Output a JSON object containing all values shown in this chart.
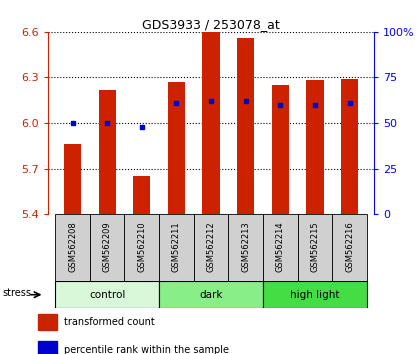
{
  "title": "GDS3933 / 253078_at",
  "samples": [
    "GSM562208",
    "GSM562209",
    "GSM562210",
    "GSM562211",
    "GSM562212",
    "GSM562213",
    "GSM562214",
    "GSM562215",
    "GSM562216"
  ],
  "transformed_counts": [
    5.86,
    6.22,
    5.65,
    6.27,
    6.6,
    6.56,
    6.25,
    6.28,
    6.29
  ],
  "percentile_ranks": [
    50,
    50,
    48,
    61,
    62,
    62,
    60,
    60,
    61
  ],
  "ylim_left": [
    5.4,
    6.6
  ],
  "ylim_right": [
    0,
    100
  ],
  "yticks_left": [
    5.4,
    5.7,
    6.0,
    6.3,
    6.6
  ],
  "yticks_right": [
    0,
    25,
    50,
    75,
    100
  ],
  "bar_color": "#cc2200",
  "dot_color": "#0000cc",
  "bar_bottom": 5.4,
  "groups": [
    {
      "label": "control",
      "start": 0,
      "end": 3,
      "color": "#d9f7d9"
    },
    {
      "label": "dark",
      "start": 3,
      "end": 6,
      "color": "#88ee88"
    },
    {
      "label": "high light",
      "start": 6,
      "end": 9,
      "color": "#44dd44"
    }
  ],
  "stress_label": "stress",
  "legend_items": [
    {
      "color": "#cc2200",
      "label": "transformed count"
    },
    {
      "color": "#0000cc",
      "label": "percentile rank within the sample"
    }
  ],
  "axis_color_left": "#cc2200",
  "axis_color_right": "#0000ff",
  "sample_box_color": "#d0d0d0",
  "title_fontsize": 9,
  "bar_width": 0.5
}
